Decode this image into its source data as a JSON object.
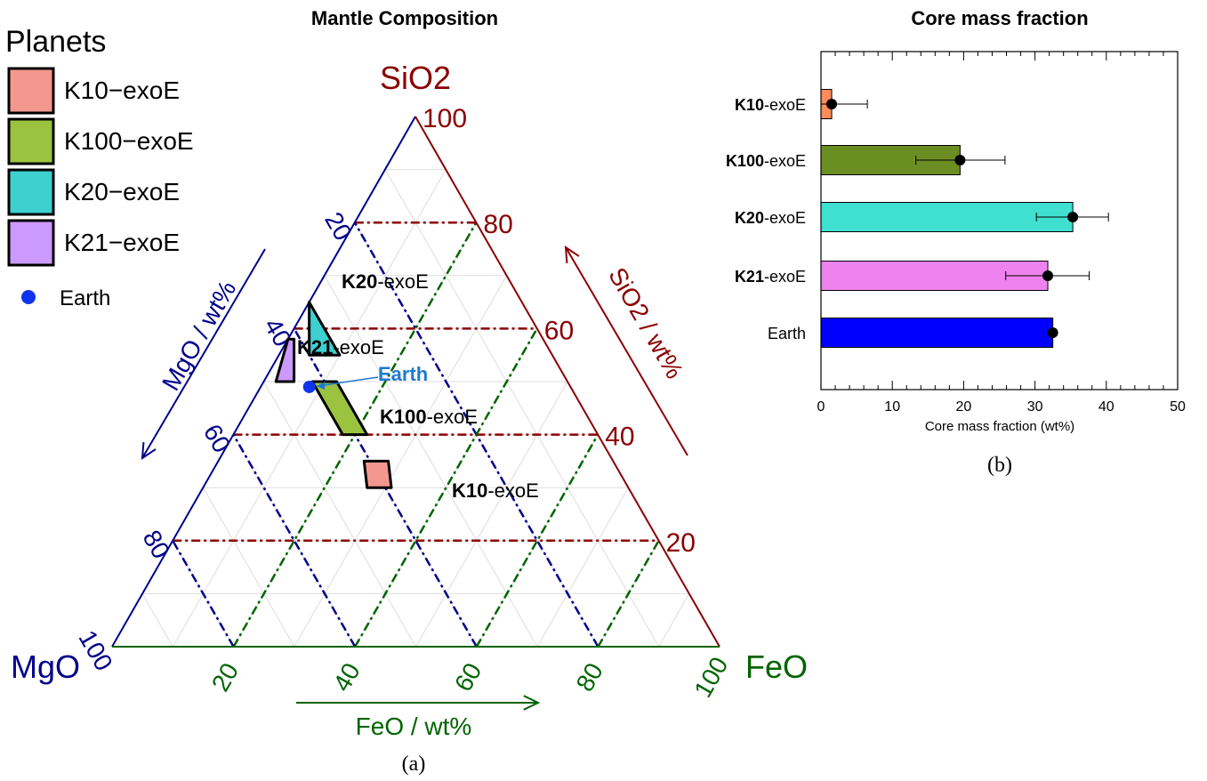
{
  "colors": {
    "sio2": "#8b0000",
    "mgo": "#00008b",
    "feo": "#006400",
    "grid": "#dddddd",
    "earth_dot": "#1033ee",
    "earth_label": "#1e7ad0"
  },
  "ternary": {
    "title": "Mantle Composition",
    "panel_label": "(a)",
    "legend": {
      "title": "Planets",
      "items": [
        {
          "label": "K10−exoE",
          "color": "#f4978e"
        },
        {
          "label": "K100−exoE",
          "color": "#9bc33f"
        },
        {
          "label": "K20−exoE",
          "color": "#3ecfcf"
        },
        {
          "label": "K21−exoE",
          "color": "#cc99ff"
        }
      ],
      "earth_label": "Earth"
    },
    "vertices": {
      "sio2": "SiO2",
      "mgo": "MgO",
      "feo": "FeO"
    },
    "axes": {
      "sio2": {
        "title": "SiO2 / wt%",
        "ticks": [
          "20",
          "40",
          "60",
          "80",
          "100"
        ]
      },
      "mgo": {
        "title": "MgO / wt%",
        "ticks": [
          "20",
          "40",
          "60",
          "80",
          "100"
        ]
      },
      "feo": {
        "title": "FeO / wt%",
        "ticks": [
          "20",
          "40",
          "60",
          "80",
          "100"
        ]
      }
    },
    "regions": [
      {
        "name": "K20",
        "label_bold": "K20",
        "label_rest": "-exoE",
        "color": "#3ecfcf",
        "points": [
          {
            "sio2": 55,
            "feo": 5
          },
          {
            "sio2": 55,
            "feo": 10
          },
          {
            "sio2": 65,
            "feo": 0
          }
        ]
      },
      {
        "name": "K21",
        "label_bold": "K21",
        "label_rest": "-exoE",
        "color": "#cc99ff",
        "points": [
          {
            "sio2": 50,
            "feo": 5
          },
          {
            "sio2": 50,
            "feo": 2
          },
          {
            "sio2": 58,
            "feo": 0
          },
          {
            "sio2": 58,
            "feo": 1
          }
        ]
      },
      {
        "name": "K100",
        "label_bold": "K100",
        "label_rest": "-exoE",
        "color": "#9bc33f",
        "points": [
          {
            "sio2": 50,
            "feo": 8
          },
          {
            "sio2": 50,
            "feo": 12
          },
          {
            "sio2": 40,
            "feo": 22
          },
          {
            "sio2": 40,
            "feo": 18
          }
        ]
      },
      {
        "name": "K10",
        "label_bold": "K10",
        "label_rest": "-exoE",
        "color": "#f4978e",
        "points": [
          {
            "sio2": 35,
            "feo": 24
          },
          {
            "sio2": 35,
            "feo": 28
          },
          {
            "sio2": 30,
            "feo": 31
          },
          {
            "sio2": 30,
            "feo": 27
          }
        ]
      }
    ],
    "earth": {
      "sio2": 49,
      "feo": 8,
      "label": "Earth"
    }
  },
  "chart_data": {
    "type": "bar",
    "title": "Core mass fraction",
    "xlabel": "Core mass fraction (wt%)",
    "xlim": [
      0,
      50
    ],
    "xticks": [
      "0",
      "10",
      "20",
      "30",
      "40",
      "50"
    ],
    "panel_label": "(b)",
    "categories": [
      {
        "bold": "K10",
        "rest": "-exoE"
      },
      {
        "bold": "K100",
        "rest": "-exoE"
      },
      {
        "bold": "K20",
        "rest": "-exoE"
      },
      {
        "bold": "K21",
        "rest": "-exoE"
      },
      {
        "bold": "",
        "rest": "Earth"
      }
    ],
    "values": [
      1.5,
      19.5,
      35.3,
      31.8,
      32.5
    ],
    "error_low": [
      0,
      13.3,
      30.2,
      25.9,
      32.5
    ],
    "error_high": [
      6.5,
      25.8,
      40.3,
      37.6,
      32.5
    ],
    "bar_colors": [
      "#ff8c5a",
      "#6b8e23",
      "#40e0d0",
      "#ee82ee",
      "#0000ff"
    ]
  }
}
